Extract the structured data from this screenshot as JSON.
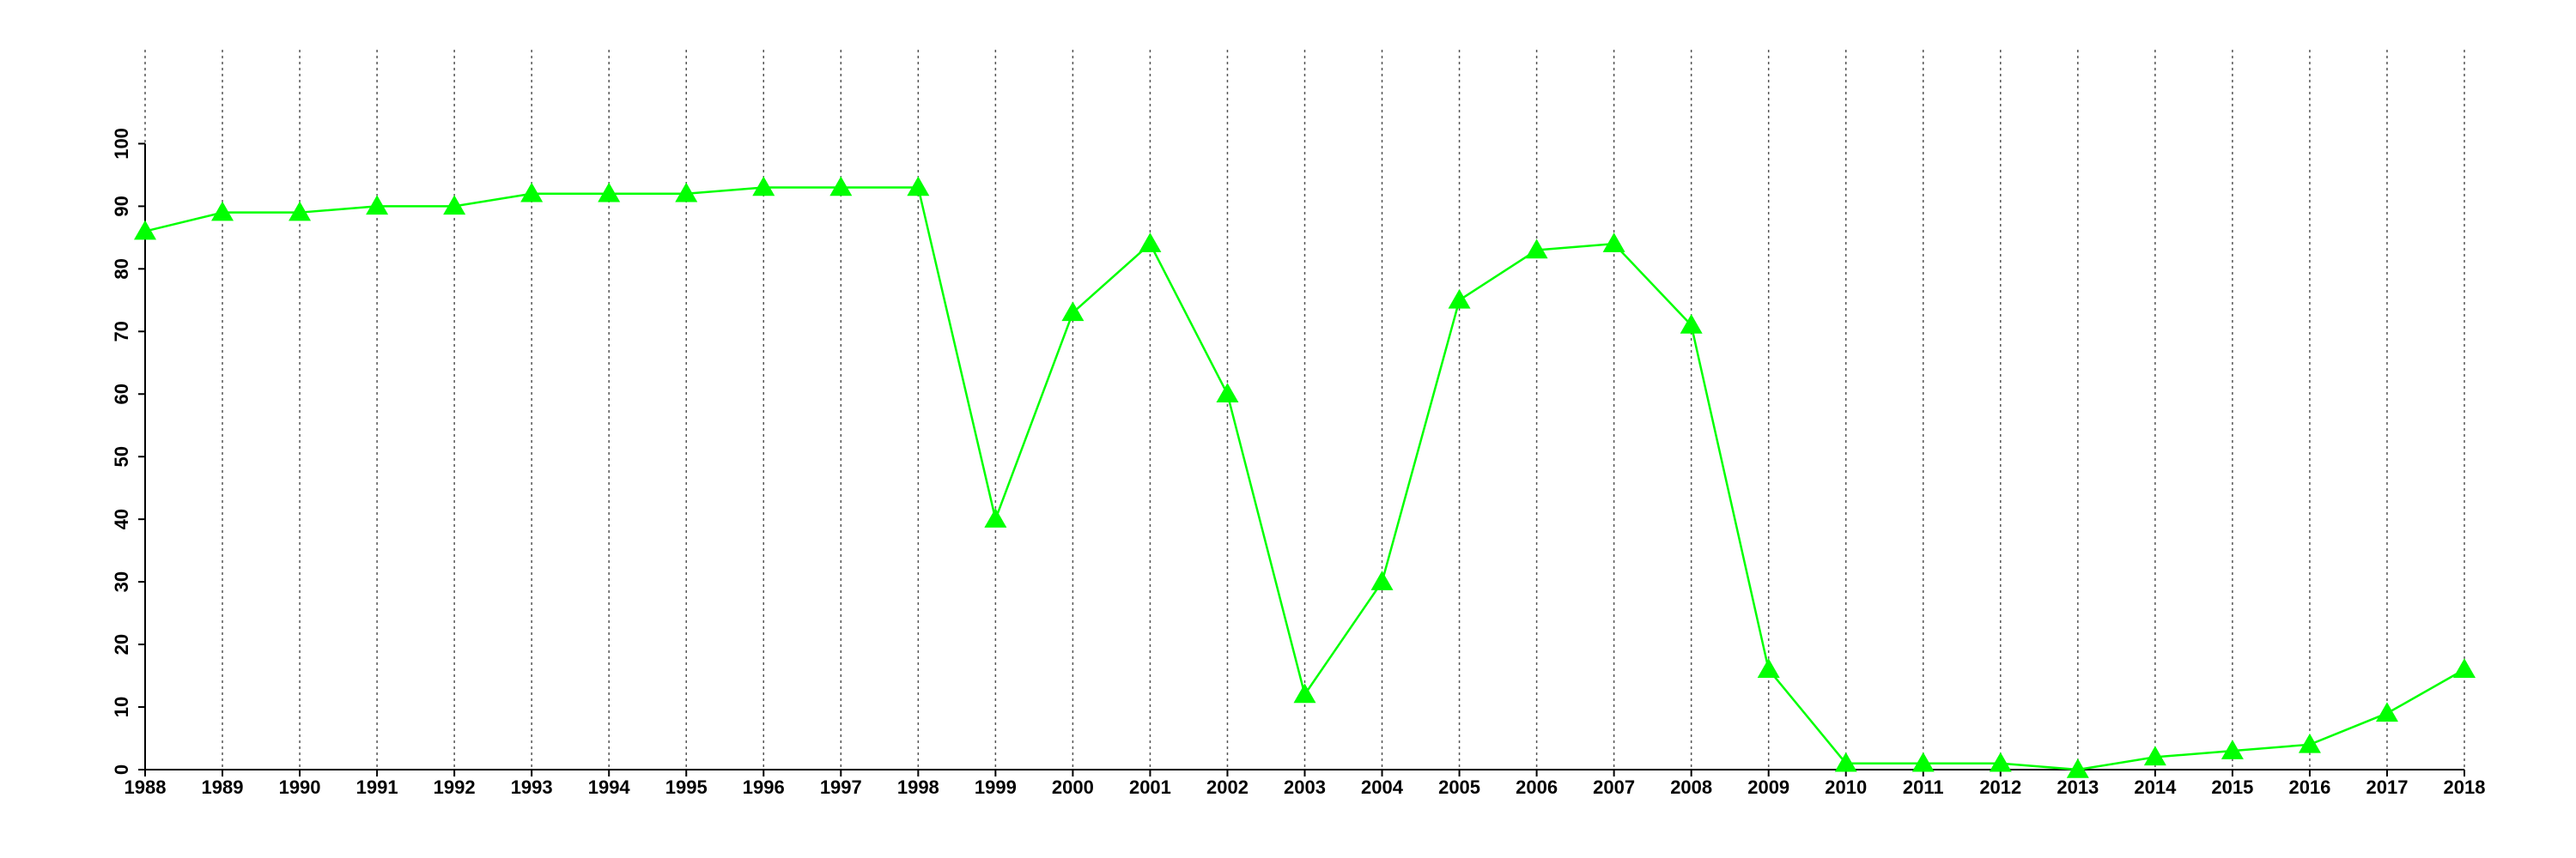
{
  "chart_data": {
    "type": "line",
    "x": [
      1988,
      1989,
      1990,
      1991,
      1992,
      1993,
      1994,
      1995,
      1996,
      1997,
      1998,
      1999,
      2000,
      2001,
      2002,
      2003,
      2004,
      2005,
      2006,
      2007,
      2008,
      2009,
      2010,
      2011,
      2012,
      2013,
      2014,
      2015,
      2016,
      2017,
      2018
    ],
    "series": [
      {
        "color": "#00ff00",
        "marker": "triangle",
        "values": [
          86,
          89,
          89,
          90,
          90,
          92,
          92,
          92,
          93,
          93,
          93,
          40,
          73,
          84,
          60,
          12,
          30,
          75,
          83,
          84,
          71,
          16,
          1,
          1,
          1,
          0,
          2,
          3,
          4,
          9,
          16
        ]
      }
    ],
    "xlim": [
      1988,
      2018
    ],
    "xticks": [
      1988,
      1989,
      1990,
      1991,
      1992,
      1993,
      1994,
      1995,
      1996,
      1997,
      1998,
      1999,
      2000,
      2001,
      2002,
      2003,
      2004,
      2005,
      2006,
      2007,
      2008,
      2009,
      2010,
      2011,
      2012,
      2013,
      2014,
      2015,
      2016,
      2017,
      2018
    ],
    "ylim": [
      0,
      115
    ],
    "yticks": [
      0,
      10,
      20,
      30,
      40,
      50,
      60,
      70,
      80,
      90,
      100
    ],
    "grid": "x"
  }
}
